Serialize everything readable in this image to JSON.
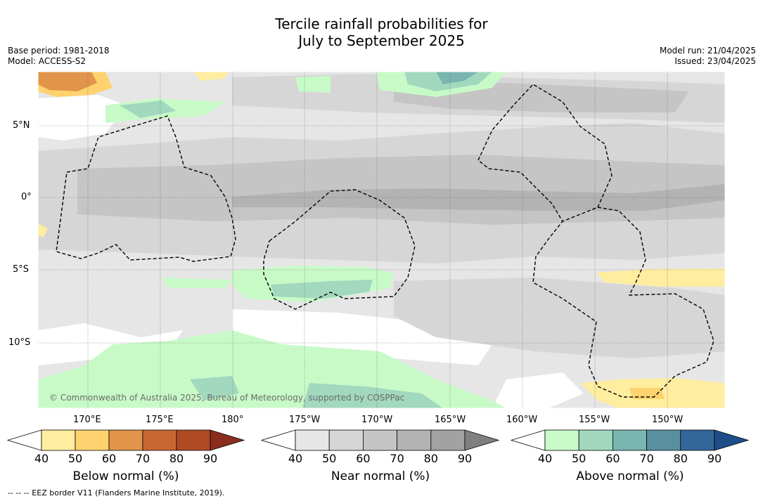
{
  "title_line1": "Tercile rainfall probabilities for",
  "title_line2": "July to September 2025",
  "meta": {
    "base_period": "Base period: 1981-2018",
    "model": "Model: ACCESS-S2",
    "model_run": "Model run: 21/04/2025",
    "issued": "Issued: 23/04/2025"
  },
  "lat_labels": [
    "5°N",
    "0°",
    "5°S",
    "10°S"
  ],
  "lon_labels": [
    "170°E",
    "175°E",
    "180°",
    "175°W",
    "170°W",
    "165°W",
    "160°W",
    "155°W",
    "150°W"
  ],
  "copyright": "© Commonwealth of Australia 2025, Bureau of Meteorology, supported by COSPPac",
  "footer": "--  --  -- EEZ border V11 (Flanders Marine Institute, 2019).",
  "colorbars": [
    {
      "label": "Below normal (%)",
      "ticks": [
        "40",
        "50",
        "60",
        "70",
        "80",
        "90"
      ],
      "colors": [
        "#ffffff",
        "#ffeda0",
        "#fed26e",
        "#e1944a",
        "#c96733",
        "#b04a25",
        "#8b2d1e"
      ]
    },
    {
      "label": "Near normal (%)",
      "ticks": [
        "40",
        "50",
        "60",
        "70",
        "80",
        "90"
      ],
      "colors": [
        "#ffffff",
        "#e6e6e6",
        "#d6d6d6",
        "#c5c5c5",
        "#b3b3b3",
        "#a2a2a2",
        "#808080"
      ]
    },
    {
      "label": "Above normal (%)",
      "ticks": [
        "40",
        "50",
        "60",
        "70",
        "80",
        "90"
      ],
      "colors": [
        "#ffffff",
        "#c8fac8",
        "#a2d8be",
        "#7ab6b0",
        "#5890a0",
        "#336699",
        "#1d4e89"
      ]
    }
  ]
}
